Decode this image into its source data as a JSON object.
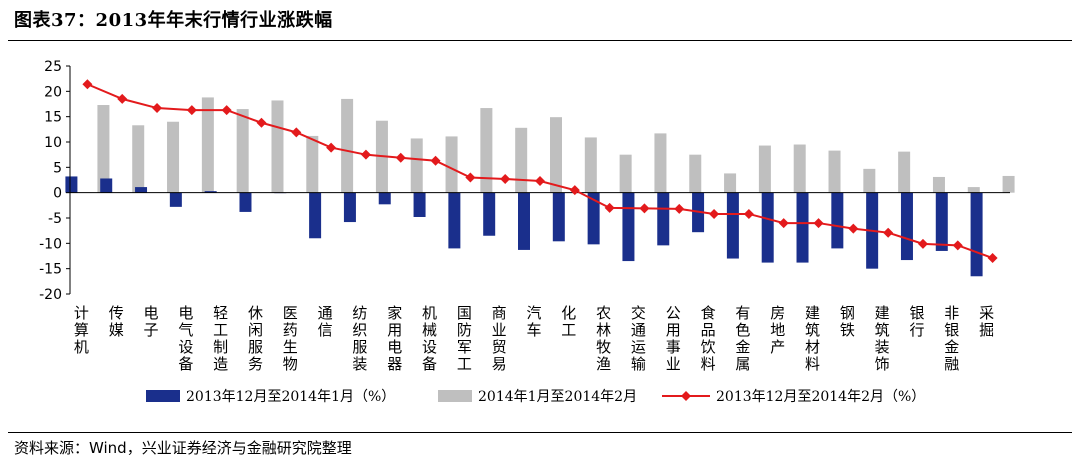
{
  "header": {
    "title": "图表37：2013年年末行情行业涨跌幅"
  },
  "footer": {
    "source": "资料来源：Wind，兴业证券经济与金融研究院整理"
  },
  "chart_data": {
    "type": "bar",
    "categories": [
      "计算机",
      "传媒",
      "电子",
      "电气设备",
      "轻工制造",
      "休闲服务",
      "医药生物",
      "通信",
      "纺织服装",
      "家用电器",
      "机械设备",
      "国防军工",
      "商业贸易",
      "汽车",
      "化工",
      "农林牧渔",
      "交通运输",
      "公用事业",
      "食品饮料",
      "有色金属",
      "房地产",
      "建筑材料",
      "钢铁",
      "建筑装饰",
      "银行",
      "非银金融",
      "采掘"
    ],
    "series": [
      {
        "name": "2013年12月至2014年1月（%）",
        "type": "bar",
        "color": "#1a2f8c",
        "values": [
          3.2,
          2.8,
          1.1,
          -2.8,
          0.3,
          -3.8,
          0.0,
          -9.0,
          -5.8,
          -2.3,
          -4.8,
          -11.0,
          -8.5,
          -11.3,
          -9.6,
          -10.2,
          -13.5,
          -10.4,
          -7.8,
          -13.0,
          -13.8,
          -13.8,
          -11.0,
          -15.0,
          -13.3,
          -11.5,
          -16.5
        ]
      },
      {
        "name": "2014年1月至2014年2月",
        "type": "bar",
        "color": "#bfbfbf",
        "values": [
          17.3,
          13.3,
          14.0,
          18.8,
          16.5,
          18.2,
          11.2,
          18.5,
          14.2,
          10.7,
          11.1,
          16.7,
          12.8,
          14.9,
          10.9,
          7.5,
          11.7,
          7.5,
          3.8,
          9.3,
          9.5,
          8.3,
          4.7,
          8.1,
          3.1,
          1.1,
          3.3
        ]
      },
      {
        "name": "2013年12月至2014年2月（%）",
        "type": "line",
        "color": "#e31a1c",
        "values": [
          21.4,
          18.5,
          16.7,
          16.3,
          16.3,
          13.8,
          11.9,
          8.9,
          7.5,
          6.9,
          6.3,
          3.0,
          2.7,
          2.3,
          0.5,
          -3.0,
          -3.1,
          -3.2,
          -4.2,
          -4.2,
          -6.0,
          -6.0,
          -7.1,
          -7.9,
          -10.1,
          -10.4,
          -12.9
        ]
      }
    ],
    "ylim": [
      -20,
      25
    ],
    "yticks": [
      25,
      20,
      15,
      10,
      5,
      0,
      -5,
      -10,
      -15,
      -20
    ],
    "legend_position": "bottom",
    "grid": false
  }
}
